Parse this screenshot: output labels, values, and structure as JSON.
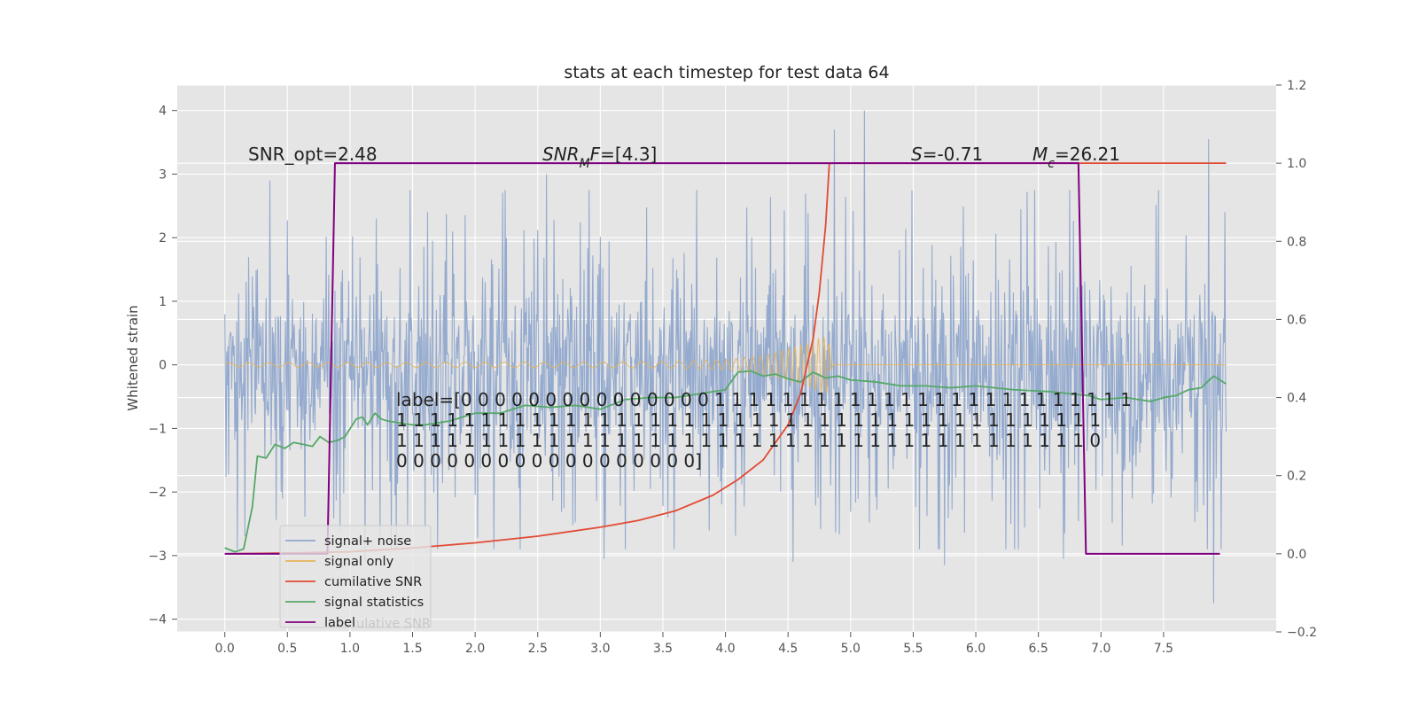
{
  "chart_data": {
    "type": "line",
    "title": "stats at each timestep for test data 64",
    "ylabel": "Whitened strain",
    "xlim": [
      -0.38,
      8.4
    ],
    "ylim": [
      -4.2,
      4.4
    ],
    "y2lim": [
      -0.2,
      1.2
    ],
    "x_ticks": [
      0.0,
      0.5,
      1.0,
      1.5,
      2.0,
      2.5,
      3.0,
      3.5,
      4.0,
      4.5,
      5.0,
      5.5,
      6.0,
      6.5,
      7.0,
      7.5
    ],
    "x_tick_labels": [
      "0.0",
      "0.5",
      "1.0",
      "1.5",
      "2.0",
      "2.5",
      "3.0",
      "3.5",
      "4.0",
      "4.5",
      "5.0",
      "5.5",
      "6.0",
      "6.5",
      "7.0",
      "7.5"
    ],
    "y_ticks": [
      -4,
      -3,
      -2,
      -1,
      0,
      1,
      2,
      3,
      4
    ],
    "y_tick_labels": [
      "−4",
      "−3",
      "−2",
      "−1",
      "0",
      "1",
      "2",
      "3",
      "4"
    ],
    "y2_ticks": [
      -0.2,
      0.0,
      0.2,
      0.4,
      0.6,
      0.8,
      1.0,
      1.2
    ],
    "y2_tick_labels": [
      "−0.2",
      "0.0",
      "0.2",
      "0.4",
      "0.6",
      "0.8",
      "1.0",
      "1.2"
    ],
    "grid": true,
    "legend_position": "lower-left",
    "series": [
      {
        "name": "signal+ noise",
        "axis": "left",
        "color": "#8fa6cc",
        "x_range": [
          0.0,
          8.0
        ],
        "band": [
          -1.05,
          0.75
        ],
        "peaks_up": [
          [
            0.36,
            2.9
          ],
          [
            1.21,
            2.3
          ],
          [
            2.57,
            3.0
          ],
          [
            4.87,
            3.7
          ],
          [
            5.11,
            4.0
          ],
          [
            7.86,
            3.55
          ]
        ],
        "peaks_down": [
          [
            1.12,
            -3.1
          ],
          [
            3.03,
            -3.05
          ],
          [
            4.54,
            -3.1
          ],
          [
            5.75,
            -3.15
          ],
          [
            6.7,
            -3.05
          ],
          [
            7.9,
            -3.75
          ]
        ]
      },
      {
        "name": "signal only",
        "axis": "left",
        "color": "#e6b35a",
        "x": [
          0.0,
          3.5,
          4.0,
          4.3,
          4.5,
          4.65,
          4.75,
          4.8,
          4.82,
          4.85,
          4.9
        ],
        "amplitude": [
          0.03,
          0.05,
          0.08,
          0.15,
          0.25,
          0.33,
          0.42,
          0.45,
          0.45,
          0.05,
          0.0
        ]
      },
      {
        "name": "cumilative SNR",
        "axis": "right",
        "color": "#e24a33",
        "x": [
          0.0,
          0.5,
          1.0,
          1.5,
          2.0,
          2.5,
          3.0,
          3.3,
          3.6,
          3.9,
          4.1,
          4.3,
          4.5,
          4.6,
          4.7,
          4.75,
          4.8,
          4.83,
          8.0
        ],
        "y": [
          0.0,
          0.002,
          0.005,
          0.015,
          0.028,
          0.045,
          0.068,
          0.085,
          0.11,
          0.15,
          0.19,
          0.24,
          0.33,
          0.41,
          0.55,
          0.67,
          0.84,
          1.0,
          1.0
        ]
      },
      {
        "name": "signal statistics",
        "axis": "right",
        "color": "#55a868",
        "x": [
          0.0,
          0.08,
          0.15,
          0.22,
          0.26,
          0.33,
          0.4,
          0.48,
          0.55,
          0.63,
          0.7,
          0.76,
          0.83,
          0.9,
          0.96,
          1.0,
          1.05,
          1.1,
          1.14,
          1.2,
          1.25,
          1.3,
          1.4,
          1.5,
          1.6,
          1.8,
          2.0,
          2.2,
          2.4,
          2.6,
          2.8,
          3.0,
          3.2,
          3.4,
          3.6,
          3.8,
          4.0,
          4.1,
          4.2,
          4.3,
          4.4,
          4.5,
          4.6,
          4.7,
          4.8,
          4.9,
          5.0,
          5.2,
          5.4,
          5.6,
          5.8,
          6.0,
          6.3,
          6.6,
          6.9,
          7.0,
          7.2,
          7.4,
          7.5,
          7.6,
          7.7,
          7.8,
          7.9,
          8.0
        ],
        "y": [
          0.015,
          0.005,
          0.012,
          0.12,
          0.25,
          0.245,
          0.28,
          0.27,
          0.285,
          0.28,
          0.275,
          0.3,
          0.285,
          0.29,
          0.3,
          0.32,
          0.345,
          0.35,
          0.33,
          0.36,
          0.345,
          0.34,
          0.335,
          0.33,
          0.33,
          0.34,
          0.36,
          0.36,
          0.38,
          0.375,
          0.38,
          0.37,
          0.395,
          0.4,
          0.4,
          0.41,
          0.42,
          0.465,
          0.468,
          0.455,
          0.46,
          0.448,
          0.44,
          0.465,
          0.45,
          0.455,
          0.445,
          0.44,
          0.43,
          0.43,
          0.425,
          0.43,
          0.42,
          0.415,
          0.405,
          0.395,
          0.4,
          0.39,
          0.4,
          0.405,
          0.42,
          0.425,
          0.455,
          0.435
        ]
      },
      {
        "name": "label",
        "axis": "right",
        "color": "#800080",
        "x": [
          0.0,
          0.82,
          0.88,
          6.82,
          6.88,
          7.95
        ],
        "y": [
          0.0,
          0.0,
          1.0,
          1.0,
          0.0,
          0.0
        ]
      }
    ],
    "annotations": [
      {
        "segments": [
          {
            "text": "SNR_opt=2.48",
            "italic": false
          }
        ]
      },
      {
        "segments": [
          {
            "text": "SNR",
            "italic": true
          },
          {
            "text": "M",
            "italic": true,
            "sub": true
          },
          {
            "text": "F",
            "italic": true
          },
          {
            "text": "=[4.3]",
            "italic": false
          }
        ]
      },
      {
        "segments": [
          {
            "text": "S",
            "italic": true
          },
          {
            "text": "=-0.71",
            "italic": false
          }
        ]
      },
      {
        "segments": [
          {
            "text": "M",
            "italic": true
          },
          {
            "text": "c",
            "italic": true,
            "sub": true
          },
          {
            "text": "=26.21",
            "italic": false
          }
        ]
      }
    ],
    "label_text": [
      "label=[0 0 0 0 0 0 0 0 0 0 0 0 0 0 0 1 1 1 1 1 1 1 1 1 1 1 1 1 1 1 1 1 1 1 1 1 1 1 1 1",
      " 1 1 1 1 1 1 1 1 1 1 1 1 1 1 1 1 1 1 1 1 1 1 1 1 1 1 1 1 1 1 1 1 1 1 1 1 1 1 1 1 1 1",
      " 1 1 1 1 1 1 1 1 1 1 1 1 1 1 1 1 1 1 1 1 1 1 1 1 1 1 1 1 1 1 1 1 1 1 1 1 1 1 1 1 1 0",
      " 0 0 0 0 0 0 0 0 0 0 0 0 0 0 0 0 0 0]"
    ],
    "legend_shadow_text": "ulative SNR"
  }
}
